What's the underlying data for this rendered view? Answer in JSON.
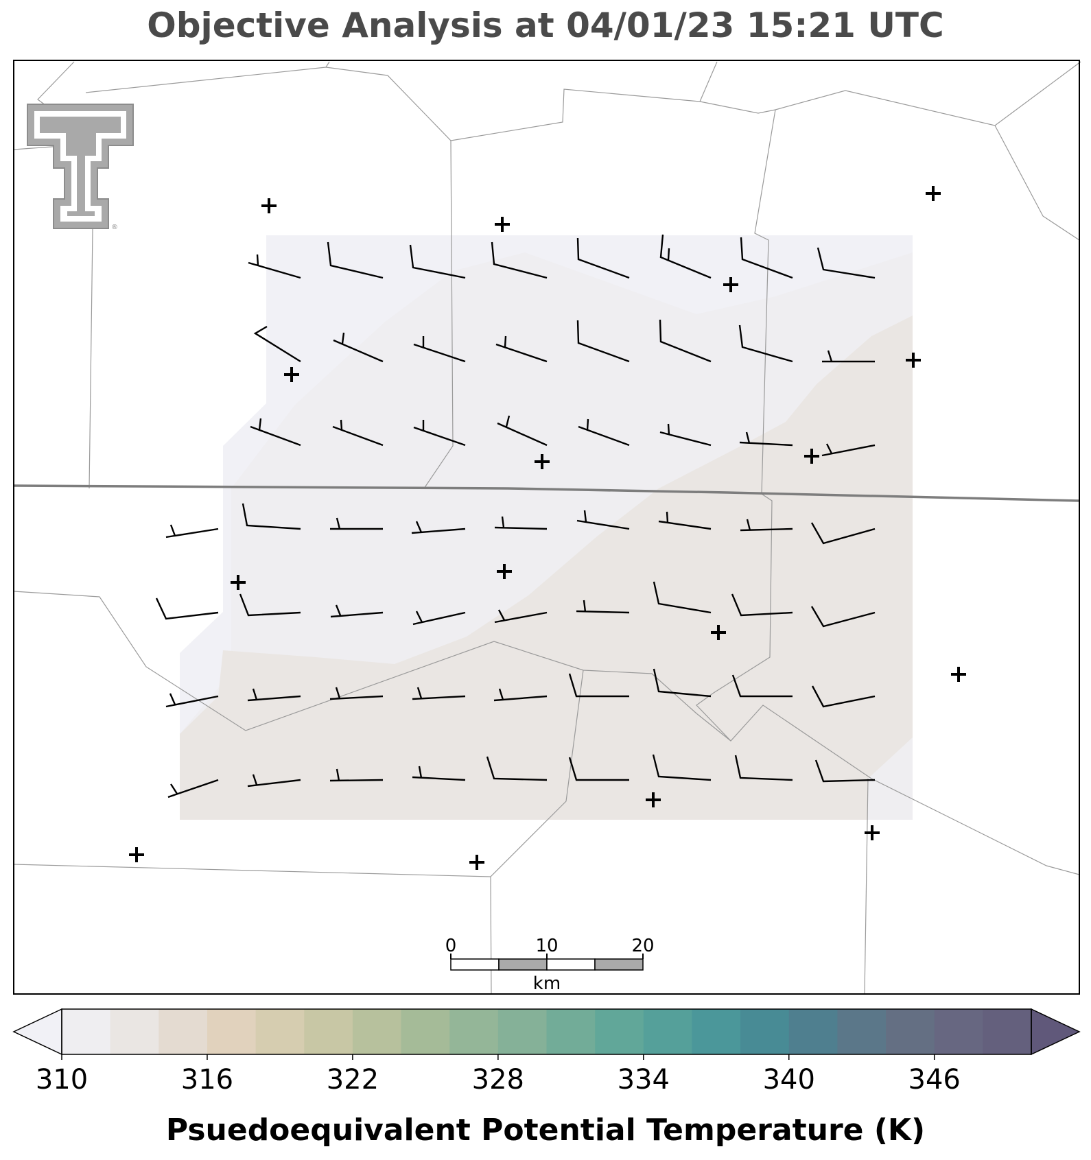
{
  "title": "Objective Analysis at 04/01/23 15:21 UTC",
  "colorbar": {
    "label": "Psuedoequivalent Potential Temperature (K)",
    "min": 310,
    "max": 350,
    "step": 2,
    "extend": "both",
    "tick_labels": [
      "310",
      "316",
      "322",
      "328",
      "334",
      "340",
      "346"
    ],
    "tick_values": [
      310,
      316,
      322,
      328,
      334,
      340,
      346
    ],
    "colors": [
      "#efeef1",
      "#eae6e3",
      "#e4dbd1",
      "#e1d2bd",
      "#d6cdb0",
      "#c8c7a5",
      "#b7c19d",
      "#a5bb98",
      "#94b698",
      "#85b198",
      "#72ac98",
      "#61a799",
      "#55a09a",
      "#4b979a",
      "#488b95",
      "#4f7f8f",
      "#5b7789",
      "#646f83",
      "#676781",
      "#64607d"
    ],
    "under_color": "#f1f1f6",
    "over_color": "#60587a"
  },
  "scale_bar": {
    "labels": [
      "0",
      "10",
      "20"
    ],
    "unit": "km"
  },
  "logo": {
    "name": "texas-tech-double-t",
    "registered_mark": "®"
  },
  "field": {
    "upper_color": "#f1f1f6",
    "middle_color": "#efeef1",
    "lower_color": "#eae6e3"
  }
}
